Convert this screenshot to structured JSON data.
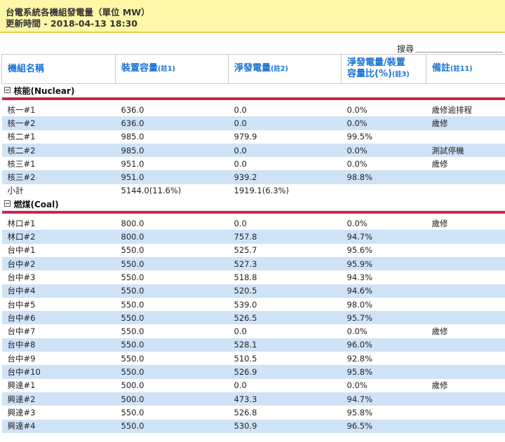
{
  "banner": {
    "title": "台電系統各機組發電量（單位 MW）",
    "updated": "更新時間 - 2018-04-13 18:30"
  },
  "search": {
    "label": "搜尋",
    "value": ""
  },
  "headers": {
    "name": "機組名稱",
    "capacity": "裝置容量",
    "capacity_note": "(註1)",
    "net": "淨發電量",
    "net_note": "(註2)",
    "ratio_line1": "淨發電量/裝置",
    "ratio_line2": "容量比(%)",
    "ratio_note": "(註3)",
    "remark": "備註",
    "remark_note": "(註11)"
  },
  "groups": [
    {
      "label": "核能(Nuclear)",
      "rows": [
        {
          "name": "核一#1",
          "capacity": "636.0",
          "net": "0.0",
          "ratio": "0.0%",
          "remark": "歲修逾排程"
        },
        {
          "name": "核一#2",
          "capacity": "636.0",
          "net": "0.0",
          "ratio": "0.0%",
          "remark": "歲修"
        },
        {
          "name": "核二#1",
          "capacity": "985.0",
          "net": "979.9",
          "ratio": "99.5%",
          "remark": ""
        },
        {
          "name": "核二#2",
          "capacity": "985.0",
          "net": "0.0",
          "ratio": "0.0%",
          "remark": "測試停機"
        },
        {
          "name": "核三#1",
          "capacity": "951.0",
          "net": "0.0",
          "ratio": "0.0%",
          "remark": "歲修"
        },
        {
          "name": "核三#2",
          "capacity": "951.0",
          "net": "939.2",
          "ratio": "98.8%",
          "remark": ""
        },
        {
          "name": "小計",
          "capacity": "5144.0(11.6%)",
          "net": "1919.1(6.3%)",
          "ratio": "",
          "remark": ""
        }
      ]
    },
    {
      "label": "燃煤(Coal)",
      "rows": [
        {
          "name": "林口#1",
          "capacity": "800.0",
          "net": "0.0",
          "ratio": "0.0%",
          "remark": "歲修"
        },
        {
          "name": "林口#2",
          "capacity": "800.0",
          "net": "757.8",
          "ratio": "94.7%",
          "remark": ""
        },
        {
          "name": "台中#1",
          "capacity": "550.0",
          "net": "525.7",
          "ratio": "95.6%",
          "remark": ""
        },
        {
          "name": "台中#2",
          "capacity": "550.0",
          "net": "527.3",
          "ratio": "95.9%",
          "remark": ""
        },
        {
          "name": "台中#3",
          "capacity": "550.0",
          "net": "518.8",
          "ratio": "94.3%",
          "remark": ""
        },
        {
          "name": "台中#4",
          "capacity": "550.0",
          "net": "520.5",
          "ratio": "94.6%",
          "remark": ""
        },
        {
          "name": "台中#5",
          "capacity": "550.0",
          "net": "539.0",
          "ratio": "98.0%",
          "remark": ""
        },
        {
          "name": "台中#6",
          "capacity": "550.0",
          "net": "526.5",
          "ratio": "95.7%",
          "remark": ""
        },
        {
          "name": "台中#7",
          "capacity": "550.0",
          "net": "0.0",
          "ratio": "0.0%",
          "remark": "歲修"
        },
        {
          "name": "台中#8",
          "capacity": "550.0",
          "net": "528.1",
          "ratio": "96.0%",
          "remark": ""
        },
        {
          "name": "台中#9",
          "capacity": "550.0",
          "net": "510.5",
          "ratio": "92.8%",
          "remark": ""
        },
        {
          "name": "台中#10",
          "capacity": "550.0",
          "net": "526.9",
          "ratio": "95.8%",
          "remark": ""
        },
        {
          "name": "興達#1",
          "capacity": "500.0",
          "net": "0.0",
          "ratio": "0.0%",
          "remark": "歲修"
        },
        {
          "name": "興達#2",
          "capacity": "500.0",
          "net": "473.3",
          "ratio": "94.7%",
          "remark": ""
        },
        {
          "name": "興達#3",
          "capacity": "550.0",
          "net": "526.8",
          "ratio": "95.8%",
          "remark": ""
        },
        {
          "name": "興達#4",
          "capacity": "550.0",
          "net": "530.9",
          "ratio": "96.5%",
          "remark": ""
        }
      ]
    }
  ]
}
